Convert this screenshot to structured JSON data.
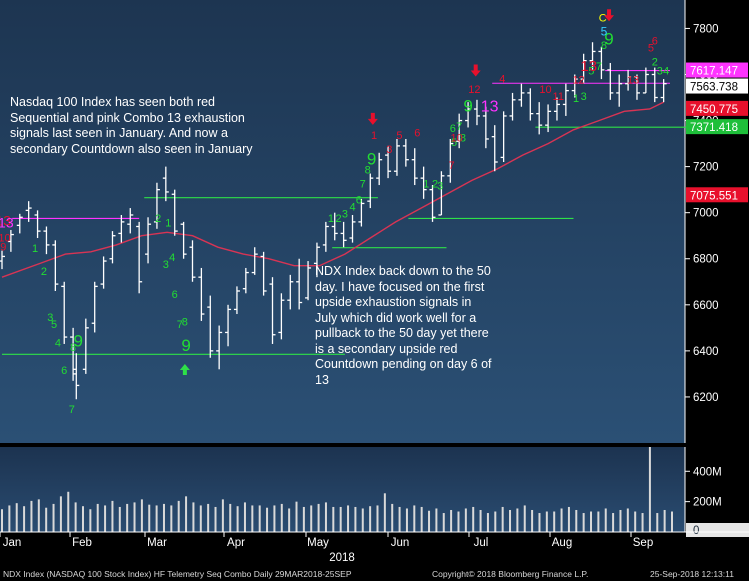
{
  "chart_data": {
    "type": "bar",
    "subtype": "ohlc-price-chart-with-volume-panel",
    "title": "",
    "xlabel": "2018",
    "ylabel": "",
    "ylim": [
      6000,
      7880
    ],
    "y_ticks": [
      6200,
      6400,
      6600,
      6800,
      7000,
      7200,
      7400,
      7600,
      7800
    ],
    "month_labels": [
      "Jan",
      "Feb",
      "Mar",
      "Apr",
      "May",
      "Jun",
      "Jul",
      "Aug",
      "Sep"
    ],
    "year_label": "2018",
    "ohlc": [
      [
        0.0,
        6755,
        6835,
        6790,
        6810
      ],
      [
        0.7,
        6830,
        6925,
        6875,
        6905
      ],
      [
        1.4,
        6910,
        6995,
        6945,
        6980
      ],
      [
        2.1,
        6960,
        7050,
        7010,
        7020
      ],
      [
        2.8,
        6890,
        7010,
        6990,
        6920
      ],
      [
        3.5,
        6820,
        6940,
        6920,
        6860
      ],
      [
        4.2,
        6660,
        6880,
        6860,
        6690
      ],
      [
        4.9,
        6430,
        6700,
        6680,
        6460
      ],
      [
        5.6,
        6270,
        6500,
        6460,
        6300
      ],
      [
        5.85,
        6190,
        6390,
        6320,
        6250
      ],
      [
        6.6,
        6300,
        6540,
        6320,
        6500
      ],
      [
        7.3,
        6480,
        6700,
        6520,
        6680
      ],
      [
        8.0,
        6670,
        6810,
        6690,
        6790
      ],
      [
        8.7,
        6780,
        6920,
        6800,
        6900
      ],
      [
        9.4,
        6870,
        6990,
        6910,
        6960
      ],
      [
        10.1,
        6910,
        7020,
        6950,
        6990
      ],
      [
        10.8,
        6650,
        6960,
        6940,
        6700
      ],
      [
        11.5,
        6780,
        6980,
        6820,
        6950
      ],
      [
        12.2,
        6930,
        7130,
        6960,
        7100
      ],
      [
        12.9,
        7050,
        7200,
        7150,
        7090
      ],
      [
        13.6,
        6900,
        7100,
        7080,
        6920
      ],
      [
        14.3,
        6800,
        6960,
        6950,
        6820
      ],
      [
        15.0,
        6700,
        6880,
        6850,
        6720
      ],
      [
        15.7,
        6530,
        6760,
        6720,
        6560
      ],
      [
        16.4,
        6370,
        6640,
        6590,
        6400
      ],
      [
        17.1,
        6320,
        6510,
        6400,
        6480
      ],
      [
        17.8,
        6420,
        6600,
        6480,
        6580
      ],
      [
        18.5,
        6560,
        6680,
        6580,
        6660
      ],
      [
        19.2,
        6650,
        6760,
        6670,
        6740
      ],
      [
        19.9,
        6730,
        6850,
        6740,
        6820
      ],
      [
        20.6,
        6640,
        6830,
        6810,
        6660
      ],
      [
        21.3,
        6430,
        6720,
        6690,
        6470
      ],
      [
        22.0,
        6450,
        6650,
        6480,
        6620
      ],
      [
        22.7,
        6580,
        6730,
        6620,
        6700
      ],
      [
        23.4,
        6580,
        6800,
        6700,
        6610
      ],
      [
        24.1,
        6620,
        6790,
        6630,
        6760
      ],
      [
        24.8,
        6720,
        6870,
        6780,
        6850
      ],
      [
        25.5,
        6830,
        6960,
        6860,
        6940
      ],
      [
        26.2,
        6880,
        7000,
        6940,
        6910
      ],
      [
        26.9,
        6850,
        6960,
        6910,
        6880
      ],
      [
        27.6,
        6870,
        6990,
        6890,
        6960
      ],
      [
        28.3,
        6940,
        7060,
        6960,
        7040
      ],
      [
        29.0,
        7020,
        7170,
        7050,
        7150
      ],
      [
        29.7,
        7120,
        7260,
        7150,
        7230
      ],
      [
        30.4,
        7150,
        7290,
        7250,
        7180
      ],
      [
        31.1,
        7160,
        7320,
        7180,
        7290
      ],
      [
        31.8,
        7200,
        7320,
        7290,
        7230
      ],
      [
        32.5,
        7120,
        7280,
        7230,
        7150
      ],
      [
        33.2,
        7060,
        7200,
        7150,
        7100
      ],
      [
        33.9,
        6960,
        7120,
        7100,
        6980
      ],
      [
        34.6,
        6990,
        7180,
        6990,
        7160
      ],
      [
        35.3,
        7130,
        7320,
        7160,
        7300
      ],
      [
        36.0,
        7280,
        7430,
        7310,
        7400
      ],
      [
        36.7,
        7370,
        7480,
        7400,
        7450
      ],
      [
        37.4,
        7380,
        7490,
        7450,
        7420
      ],
      [
        38.1,
        7280,
        7460,
        7420,
        7320
      ],
      [
        38.8,
        7180,
        7380,
        7330,
        7220
      ],
      [
        39.5,
        7220,
        7440,
        7240,
        7420
      ],
      [
        40.2,
        7400,
        7520,
        7420,
        7490
      ],
      [
        40.9,
        7460,
        7560,
        7490,
        7520
      ],
      [
        41.6,
        7400,
        7540,
        7520,
        7430
      ],
      [
        42.3,
        7340,
        7480,
        7430,
        7380
      ],
      [
        43.0,
        7350,
        7470,
        7380,
        7440
      ],
      [
        43.7,
        7400,
        7500,
        7440,
        7470
      ],
      [
        44.4,
        7420,
        7560,
        7470,
        7530
      ],
      [
        45.1,
        7500,
        7600,
        7530,
        7580
      ],
      [
        45.8,
        7560,
        7690,
        7580,
        7660
      ],
      [
        46.5,
        7620,
        7740,
        7660,
        7700
      ],
      [
        47.2,
        7580,
        7720,
        7700,
        7620
      ],
      [
        47.9,
        7490,
        7650,
        7620,
        7520
      ],
      [
        48.6,
        7460,
        7600,
        7520,
        7560
      ],
      [
        49.3,
        7530,
        7620,
        7560,
        7590
      ],
      [
        50.0,
        7490,
        7600,
        7590,
        7520
      ],
      [
        50.7,
        7520,
        7630,
        7520,
        7600
      ],
      [
        51.4,
        7480,
        7630,
        7600,
        7500
      ],
      [
        52.1,
        7480,
        7580,
        7500,
        7560
      ]
    ],
    "ma50": [
      [
        0,
        6720
      ],
      [
        3,
        6780
      ],
      [
        5,
        6820
      ],
      [
        7,
        6830
      ],
      [
        9,
        6860
      ],
      [
        11,
        6900
      ],
      [
        13,
        6915
      ],
      [
        15,
        6900
      ],
      [
        17,
        6850
      ],
      [
        19,
        6820
      ],
      [
        21,
        6800
      ],
      [
        23,
        6770
      ],
      [
        25,
        6770
      ],
      [
        27,
        6820
      ],
      [
        29,
        6890
      ],
      [
        31,
        6960
      ],
      [
        33,
        7020
      ],
      [
        35,
        7080
      ],
      [
        37,
        7140
      ],
      [
        39,
        7190
      ],
      [
        41,
        7250
      ],
      [
        43,
        7300
      ],
      [
        45,
        7360
      ],
      [
        47,
        7400
      ],
      [
        49,
        7440
      ],
      [
        51,
        7450
      ],
      [
        52.1,
        7480
      ]
    ],
    "volume_ylim": [
      0,
      560
    ],
    "volume_ticks": [
      {
        "label": "0",
        "value": 0
      },
      {
        "label": "200M",
        "value": 200
      },
      {
        "label": "400M",
        "value": 400
      }
    ],
    "volume": [
      150,
      175,
      190,
      170,
      205,
      215,
      160,
      185,
      235,
      265,
      195,
      170,
      150,
      185,
      175,
      205,
      165,
      185,
      195,
      215,
      180,
      175,
      185,
      175,
      205,
      235,
      195,
      175,
      185,
      165,
      215,
      185,
      170,
      195,
      175,
      175,
      160,
      175,
      185,
      155,
      200,
      165,
      175,
      185,
      195,
      165,
      165,
      175,
      165,
      155,
      170,
      175,
      255,
      185,
      165,
      155,
      175,
      165,
      140,
      155,
      125,
      145,
      135,
      155,
      165,
      145,
      125,
      135,
      165,
      145,
      155,
      175,
      145,
      125,
      135,
      135,
      155,
      165,
      145,
      125,
      135,
      135,
      155,
      125,
      145,
      155,
      135,
      125,
      560,
      125,
      145,
      135
    ],
    "series": [
      {
        "name": "NDX Index",
        "type": "ohlc",
        "color": "#ffffff"
      },
      {
        "name": "",
        "type": "line",
        "color": "#d83454"
      }
    ]
  },
  "price_tags": [
    {
      "label": "7617.147",
      "value": 7617.147,
      "bg": "#ff33ff",
      "fg": "#ffffff"
    },
    {
      "label": "7563.738",
      "value": 7563.738,
      "bg": "#ffffff",
      "fg": "#000000"
    },
    {
      "label": "7450.775",
      "value": 7450.775,
      "bg": "#e8102c",
      "fg": "#ffffff"
    },
    {
      "label": "7371.418",
      "value": 7371.418,
      "bg": "#1ebf3a",
      "fg": "#ffffff"
    },
    {
      "label": "7075.551",
      "value": 7075.551,
      "bg": "#e8102c",
      "fg": "#ffffff"
    }
  ],
  "levels": [
    {
      "color": "#ff33ff",
      "value": 6975,
      "x_from": 0.8,
      "x_to": 10.8
    },
    {
      "color": "#ff33ff",
      "value": 7562,
      "x_from": 38.6,
      "x_to": 52.6
    },
    {
      "color": "#ff33ff",
      "value": 7617,
      "x_from": 47.5,
      "x_to": 52.6
    },
    {
      "color": "#2ee048",
      "value": 7065,
      "x_from": 11.2,
      "x_to": 29.6
    },
    {
      "color": "#2ee048",
      "value": 6385,
      "x_from": 0.0,
      "x_to": 27.0
    },
    {
      "color": "#2ee048",
      "value": 6848,
      "x_from": 26.0,
      "x_to": 35.0
    },
    {
      "color": "#2ee048",
      "value": 6975,
      "x_from": 32.0,
      "x_to": 45.0
    },
    {
      "color": "#2ee048",
      "value": 7371,
      "x_from": 42.0,
      "x_to": 56.0
    }
  ],
  "setup_labels": [
    {
      "text": "1",
      "color": "#22dd33",
      "i": 2.6,
      "v": 6830,
      "size": 11
    },
    {
      "text": "2",
      "color": "#22dd33",
      "i": 3.3,
      "v": 6730,
      "size": 11
    },
    {
      "text": "3",
      "color": "#22dd33",
      "i": 3.8,
      "v": 6530,
      "size": 11
    },
    {
      "text": "5",
      "color": "#22dd33",
      "i": 4.1,
      "v": 6500,
      "size": 11
    },
    {
      "text": "4",
      "color": "#22dd33",
      "i": 4.4,
      "v": 6420,
      "size": 11
    },
    {
      "text": "6",
      "color": "#22dd33",
      "i": 4.9,
      "v": 6300,
      "size": 11
    },
    {
      "text": "8",
      "color": "#22dd33",
      "i": 5.6,
      "v": 6400,
      "size": 11
    },
    {
      "text": "9",
      "color": "#22dd33",
      "i": 6.0,
      "v": 6420,
      "size": 17
    },
    {
      "text": "7",
      "color": "#22dd33",
      "i": 5.5,
      "v": 6130,
      "size": 11
    },
    {
      "text": "2",
      "color": "#22dd33",
      "i": 12.3,
      "v": 6960,
      "size": 11
    },
    {
      "text": "1",
      "color": "#22dd33",
      "i": 13.1,
      "v": 6940,
      "size": 11
    },
    {
      "text": "3",
      "color": "#22dd33",
      "i": 12.9,
      "v": 6760,
      "size": 11
    },
    {
      "text": "4",
      "color": "#22dd33",
      "i": 13.4,
      "v": 6790,
      "size": 11
    },
    {
      "text": "6",
      "color": "#22dd33",
      "i": 13.6,
      "v": 6630,
      "size": 11
    },
    {
      "text": "7",
      "color": "#22dd33",
      "i": 14.0,
      "v": 6500,
      "size": 11
    },
    {
      "text": "8",
      "color": "#22dd33",
      "i": 14.4,
      "v": 6510,
      "size": 11
    },
    {
      "text": "9",
      "color": "#22dd33",
      "i": 14.5,
      "v": 6400,
      "size": 17
    },
    {
      "text": "1",
      "color": "#22dd33",
      "i": 25.9,
      "v": 6960,
      "size": 11
    },
    {
      "text": "2",
      "color": "#22dd33",
      "i": 26.5,
      "v": 6960,
      "size": 11
    },
    {
      "text": "3",
      "color": "#22dd33",
      "i": 27.0,
      "v": 6980,
      "size": 11
    },
    {
      "text": "4",
      "color": "#22dd33",
      "i": 27.6,
      "v": 7010,
      "size": 11
    },
    {
      "text": "6",
      "color": "#22dd33",
      "i": 28.1,
      "v": 7040,
      "size": 11
    },
    {
      "text": "7",
      "color": "#22dd33",
      "i": 28.4,
      "v": 7110,
      "size": 11
    },
    {
      "text": "8",
      "color": "#22dd33",
      "i": 28.8,
      "v": 7170,
      "size": 11
    },
    {
      "text": "9",
      "color": "#22dd33",
      "i": 29.1,
      "v": 7210,
      "size": 17
    },
    {
      "text": "1",
      "color": "#22dd33",
      "i": 33.4,
      "v": 7110,
      "size": 11
    },
    {
      "text": "2",
      "color": "#22dd33",
      "i": 34.1,
      "v": 7110,
      "size": 11
    },
    {
      "text": "3",
      "color": "#22dd33",
      "i": 34.5,
      "v": 7100,
      "size": 11
    },
    {
      "text": "5",
      "color": "#22dd33",
      "i": 35.6,
      "v": 7290,
      "size": 11
    },
    {
      "text": "6",
      "color": "#22dd33",
      "i": 35.5,
      "v": 7350,
      "size": 11
    },
    {
      "text": "7",
      "color": "#22dd33",
      "i": 36.0,
      "v": 7360,
      "size": 11
    },
    {
      "text": "8",
      "color": "#22dd33",
      "i": 36.3,
      "v": 7310,
      "size": 11
    },
    {
      "text": "9",
      "color": "#22dd33",
      "i": 36.7,
      "v": 7440,
      "size": 17
    },
    {
      "text": "1",
      "color": "#22dd33",
      "i": 45.2,
      "v": 7480,
      "size": 11
    },
    {
      "text": "3",
      "color": "#22dd33",
      "i": 45.8,
      "v": 7490,
      "size": 11
    },
    {
      "text": "5",
      "color": "#22dd33",
      "i": 46.4,
      "v": 7600,
      "size": 11
    },
    {
      "text": "7",
      "color": "#22dd33",
      "i": 47.0,
      "v": 7620,
      "size": 11
    },
    {
      "text": "8",
      "color": "#22dd33",
      "i": 47.4,
      "v": 7710,
      "size": 11
    },
    {
      "text": "9",
      "color": "#22dd33",
      "i": 47.8,
      "v": 7730,
      "size": 17
    },
    {
      "text": "2",
      "color": "#22dd33",
      "i": 51.4,
      "v": 7640,
      "size": 11
    },
    {
      "text": "3",
      "color": "#22dd33",
      "i": 51.8,
      "v": 7600,
      "size": 11
    },
    {
      "text": "4",
      "color": "#22dd33",
      "i": 52.3,
      "v": 7600,
      "size": 11
    },
    {
      "text": "5",
      "color": "#33ccff",
      "i": 47.4,
      "v": 7770,
      "size": 12
    },
    {
      "text": "13",
      "color": "#e8102c",
      "i": 0.1,
      "v": 6945,
      "size": 14
    },
    {
      "text": "13",
      "color": "#ff33ff",
      "i": 0.3,
      "v": 6935,
      "size": 14
    },
    {
      "text": "10",
      "color": "#e8102c",
      "i": 0.2,
      "v": 6875,
      "size": 11
    },
    {
      "text": "9",
      "color": "#e8102c",
      "i": 0.1,
      "v": 6835,
      "size": 11
    },
    {
      "text": "1",
      "color": "#e8102c",
      "i": 29.3,
      "v": 7320,
      "size": 11
    },
    {
      "text": "3",
      "color": "#e8102c",
      "i": 30.5,
      "v": 7260,
      "size": 11
    },
    {
      "text": "5",
      "color": "#e8102c",
      "i": 31.3,
      "v": 7320,
      "size": 11
    },
    {
      "text": "6",
      "color": "#e8102c",
      "i": 32.7,
      "v": 7330,
      "size": 11
    },
    {
      "text": "7",
      "color": "#e8102c",
      "i": 35.4,
      "v": 7190,
      "size": 11
    },
    {
      "text": "10",
      "color": "#e8102c",
      "i": 35.8,
      "v": 7310,
      "size": 11
    },
    {
      "text": "12",
      "color": "#e8102c",
      "i": 37.2,
      "v": 7520,
      "size": 11
    },
    {
      "text": "13",
      "color": "#ff33ff",
      "i": 38.4,
      "v": 7440,
      "size": 16
    },
    {
      "text": "4",
      "color": "#e8102c",
      "i": 39.4,
      "v": 7565,
      "size": 11
    },
    {
      "text": "10",
      "color": "#e8102c",
      "i": 42.8,
      "v": 7520,
      "size": 11
    },
    {
      "text": "11",
      "color": "#e8102c",
      "i": 43.8,
      "v": 7490,
      "size": 11
    },
    {
      "text": "12",
      "color": "#e8102c",
      "i": 45.4,
      "v": 7560,
      "size": 11
    },
    {
      "text": "13",
      "color": "#e8102c",
      "i": 46.2,
      "v": 7615,
      "size": 15
    },
    {
      "text": "13",
      "color": "#e8102c",
      "i": 49.7,
      "v": 7560,
      "size": 11
    },
    {
      "text": "5",
      "color": "#e8102c",
      "i": 51.1,
      "v": 7700,
      "size": 11
    },
    {
      "text": "6",
      "color": "#e8102c",
      "i": 51.4,
      "v": 7730,
      "size": 11
    },
    {
      "text": "C",
      "color": "#ffff00",
      "i": 47.3,
      "v": 7830,
      "size": 11
    }
  ],
  "arrows": [
    {
      "dir": "down",
      "color": "#e8102c",
      "i": 29.2,
      "v": 7390
    },
    {
      "dir": "down",
      "color": "#e8102c",
      "i": 37.3,
      "v": 7600
    },
    {
      "dir": "down",
      "color": "#e8102c",
      "i": 47.8,
      "v": 7840
    },
    {
      "dir": "up",
      "color": "#2ee048",
      "i": 14.4,
      "v": 6330
    }
  ],
  "annotations": {
    "left_note": "Nasdaq 100 Index has seen both red\nSequential and pink Combo 13 exhaustion\nsignals last seen in January.  And now a\nsecondary Countdown also seen in January",
    "middle_note": "NDX Index back down to the 50\nday. I have focused on the first\nupside exhaustion signals in\nJuly which did work well for a\npullback to the 50 day yet there\nis a secondary upside red\nCountdown pending on day 6 of\n13"
  },
  "footer": {
    "left": "NDX Index (NASDAQ 100 Stock Index) HF Telemetry Seq Combo  Daily 29MAR2018-25SEP",
    "center": "Copyright© 2018 Bloomberg Finance L.P.",
    "right": "25-Sep-2018 12:13:11"
  },
  "colors": {
    "background": "#000000",
    "panel_top": "#1d3551",
    "panel_bottom": "#2b5075",
    "price": "#ffffff",
    "ma": "#d83454",
    "axis_text": "#ffffff"
  }
}
